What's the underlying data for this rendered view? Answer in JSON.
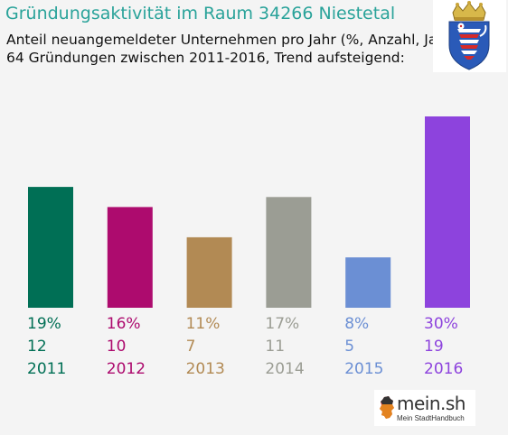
{
  "header": {
    "title": "Gründungsaktivität im Raum 34266 Niestetal",
    "subtitle_line1": "Anteil neuangemeldeter Unternehmen pro Jahr (%, Anzahl, Jahr)",
    "subtitle_line2": "64 Gründungen zwischen 2011-2016, Trend aufsteigend:"
  },
  "logo": {
    "name": "mein.sh",
    "tagline": "Mein StadtHandbuch"
  },
  "icons": {
    "crest": "hesse-coat-of-arms-icon",
    "map": "germany-map-icon"
  },
  "colors": {
    "title": "#2aa39a",
    "background": "#f4f4f4"
  },
  "chart_data": {
    "type": "bar",
    "categories": [
      "2011",
      "2012",
      "2013",
      "2014",
      "2015",
      "2016"
    ],
    "percent_labels": [
      "19%",
      "16%",
      "11%",
      "17%",
      "8%",
      "30%"
    ],
    "count_labels": [
      "12",
      "10",
      "7",
      "11",
      "5",
      "19"
    ],
    "values": [
      12,
      10,
      7,
      11,
      5,
      19
    ],
    "colors": [
      "#006f55",
      "#ad0b6e",
      "#b28a54",
      "#9b9d94",
      "#6b8fd4",
      "#8d43dd"
    ],
    "ylim": [
      0,
      19
    ],
    "grid": false,
    "legend": "none"
  }
}
